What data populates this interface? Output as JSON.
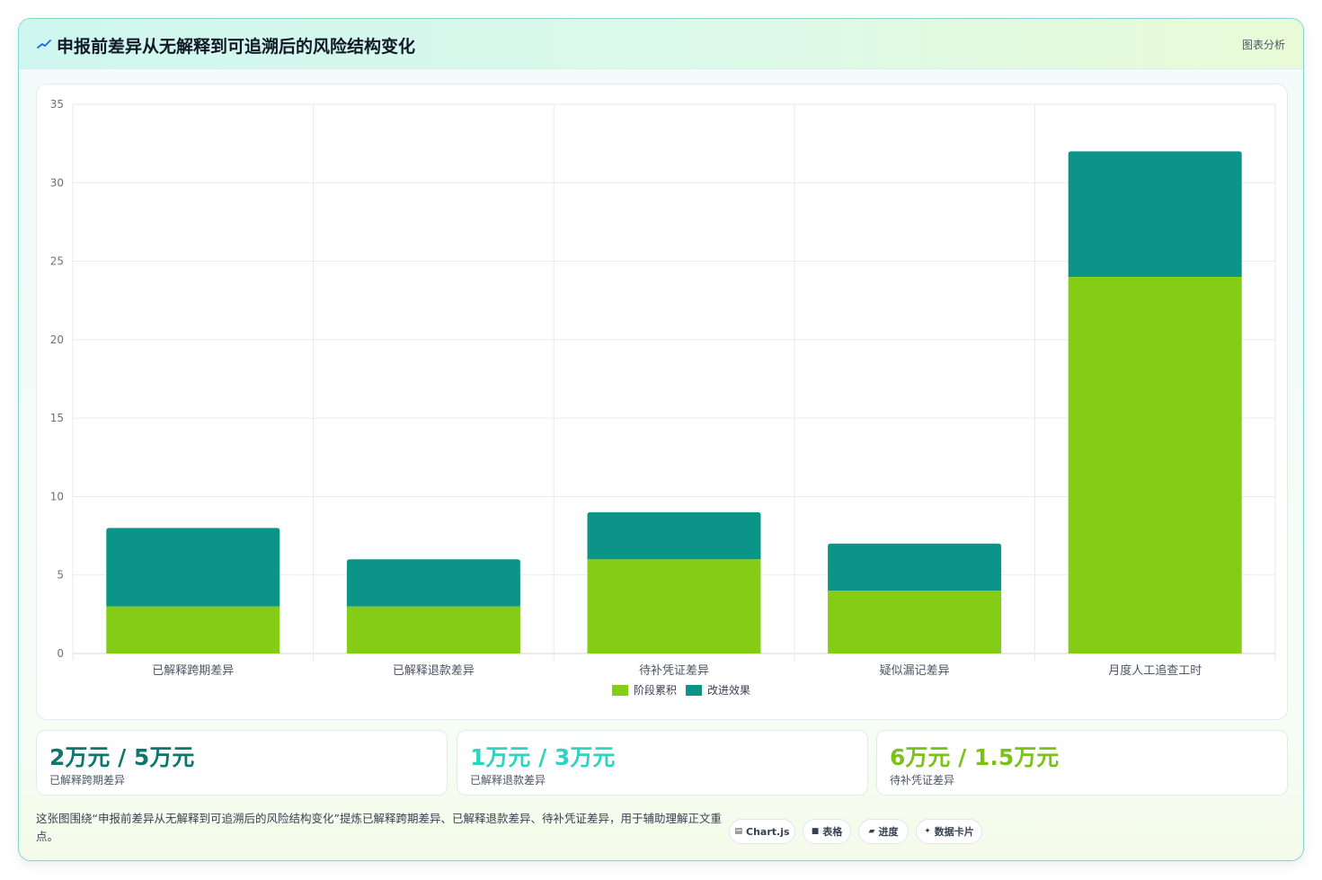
{
  "header": {
    "title": "申报前差异从无解释到可追溯后的风险结构变化",
    "badge": "图表分析"
  },
  "chart_data": {
    "type": "bar",
    "stacked": true,
    "categories": [
      "已解释跨期差异",
      "已解释退款差异",
      "待补凭证差异",
      "疑似漏记差异",
      "月度人工追查工时"
    ],
    "series": [
      {
        "name": "阶段累积",
        "values": [
          3,
          3,
          6,
          4,
          24
        ],
        "color": "#84cc16"
      },
      {
        "name": "改进效果",
        "values": [
          5,
          3,
          3,
          3,
          8
        ],
        "color": "#0d9488"
      }
    ],
    "ylim": [
      0,
      35
    ],
    "yticks": [
      0,
      5,
      10,
      15,
      20,
      25,
      30,
      35
    ],
    "grid": true,
    "legend_position": "bottom"
  },
  "stats": [
    {
      "value": "2万元 / 5万元",
      "label": "已解释跨期差异",
      "color": "#0f766e"
    },
    {
      "value": "1万元 / 3万元",
      "label": "已解释退款差异",
      "color": "#2dd4bf"
    },
    {
      "value": "6万元 / 1.5万元",
      "label": "待补凭证差异",
      "color": "#7cc11a"
    }
  ],
  "footnote": "这张图围绕“申报前差异从无解释到可追溯后的风险结构变化”提炼已解释跨期差异、已解释退款差异、待补凭证差异，用于辅助理解正文重点。",
  "tags": [
    {
      "icon": "▤",
      "label": "Chart.js"
    },
    {
      "icon": "■",
      "label": "表格"
    },
    {
      "icon": "▰",
      "label": "进度"
    },
    {
      "icon": "✦",
      "label": "数据卡片"
    }
  ]
}
